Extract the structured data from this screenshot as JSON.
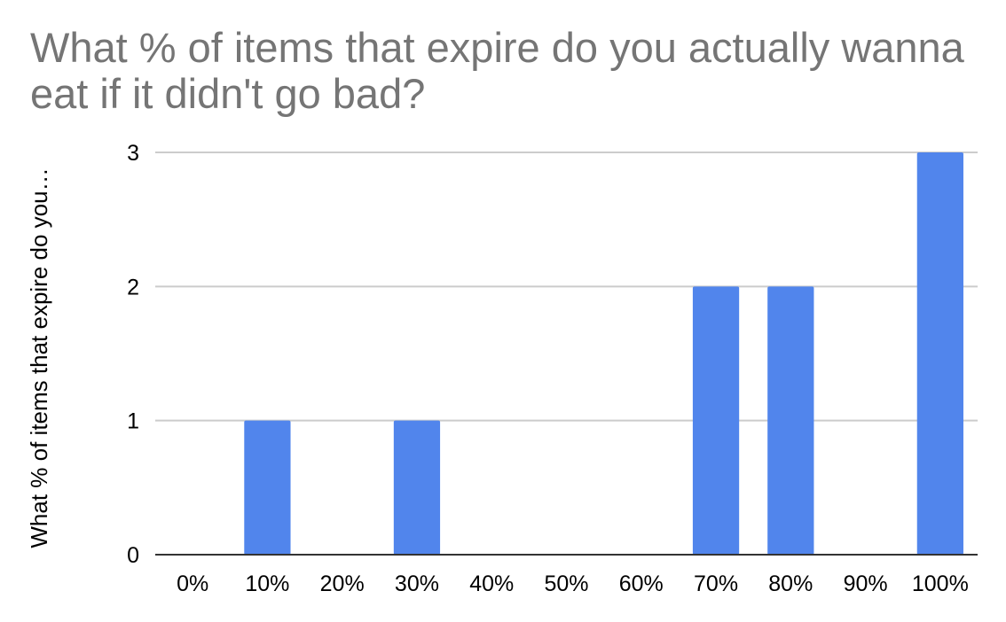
{
  "chart_data": {
    "type": "bar",
    "title": "What % of items that expire do you actually wanna eat if it didn't go bad?",
    "xlabel": "",
    "ylabel": "What % of items that expire do you…",
    "categories": [
      "0%",
      "10%",
      "20%",
      "30%",
      "40%",
      "50%",
      "60%",
      "70%",
      "80%",
      "90%",
      "100%"
    ],
    "values": [
      0,
      1,
      0,
      1,
      0,
      0,
      0,
      2,
      2,
      0,
      3
    ],
    "ylim": [
      0,
      3
    ],
    "yticks": [
      "0",
      "1",
      "2",
      "3"
    ],
    "grid": true,
    "legend": "none",
    "colors": {
      "bar": "#5185ec",
      "grid": "#cccccc",
      "axis": "#333333",
      "title": "#757575"
    }
  }
}
